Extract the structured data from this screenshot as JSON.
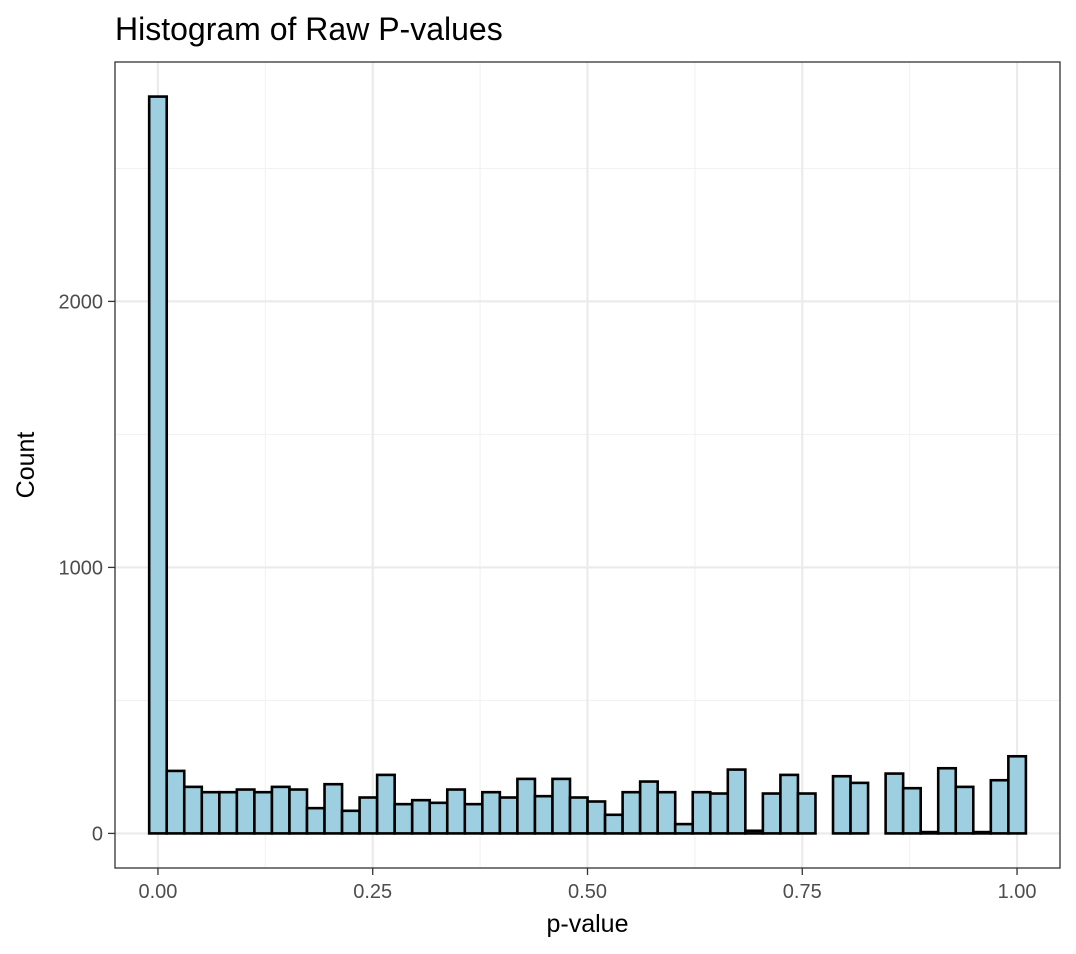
{
  "chart_data": {
    "type": "bar",
    "title": "Histogram of Raw P-values",
    "xlabel": "p-value",
    "ylabel": "Count",
    "xlim": [
      -0.05,
      1.05
    ],
    "ylim": [
      -130,
      2900
    ],
    "bin_width": 0.02041,
    "bin_centers_start": 0.0,
    "x_ticks": [
      0.0,
      0.25,
      0.5,
      0.75,
      1.0
    ],
    "x_tick_labels": [
      "0.00",
      "0.25",
      "0.50",
      "0.75",
      "1.00"
    ],
    "y_ticks": [
      0,
      1000,
      2000
    ],
    "y_tick_labels": [
      "0",
      "1000",
      "2000"
    ],
    "values": [
      2770,
      235,
      175,
      155,
      155,
      165,
      155,
      175,
      165,
      95,
      185,
      85,
      135,
      220,
      110,
      125,
      115,
      165,
      110,
      155,
      135,
      205,
      140,
      205,
      135,
      120,
      70,
      155,
      195,
      155,
      35,
      155,
      150,
      240,
      10,
      150,
      220,
      150,
      0,
      215,
      190,
      0,
      225,
      170,
      5,
      245,
      175,
      5,
      200,
      290
    ],
    "fill_color": "#9ecfe0",
    "outline_color": "#000000",
    "grid": true,
    "legend": "none"
  }
}
